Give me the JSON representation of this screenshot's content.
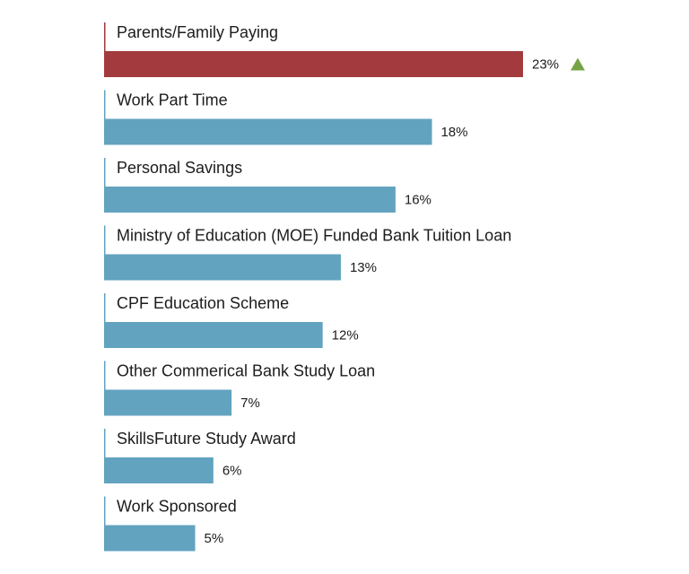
{
  "chart_data": {
    "type": "bar",
    "orientation": "horizontal",
    "categories": [
      "Parents/Family Paying",
      "Work Part Time",
      "Personal Savings",
      "Ministry of Education (MOE) Funded Bank Tuition Loan",
      "CPF Education Scheme",
      "Other Commerical Bank Study Loan",
      "SkillsFuture Study Award",
      "Work Sponsored"
    ],
    "values": [
      23,
      18,
      16,
      13,
      12,
      7,
      6,
      5
    ],
    "value_labels": [
      "23%",
      "18%",
      "16%",
      "13%",
      "12%",
      "7%",
      "6%",
      "5%"
    ],
    "unit": "%",
    "highlight_index": 0,
    "highlight_marker": "up-triangle",
    "colors": {
      "bar": "#62a3c0",
      "highlight_bar": "#a23a3e",
      "highlight_stem": "#a23a3e",
      "stem": "#62a3c0",
      "up_arrow": "#76a346",
      "text": "#1c1c1c"
    },
    "title": "",
    "xlabel": "",
    "ylabel": "",
    "xlim": [
      0,
      23
    ],
    "grid": false,
    "legend": "none"
  }
}
